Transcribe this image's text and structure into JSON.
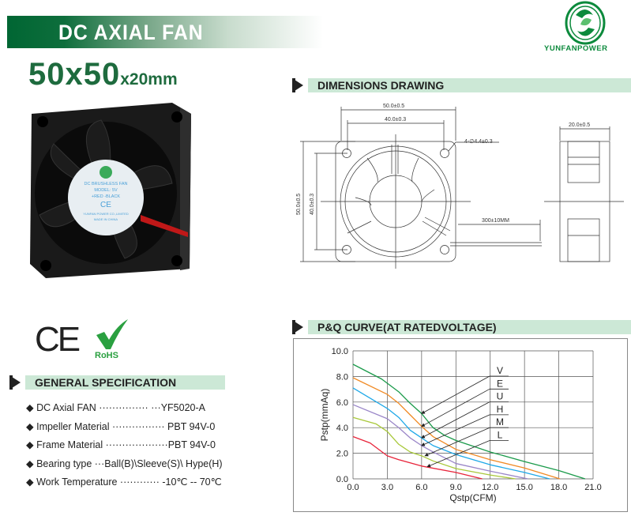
{
  "header": {
    "title": "DC AXIAL FAN",
    "size_main": "50x50",
    "size_sub": "x20mm",
    "brand": "YUNFANPOWER"
  },
  "colors": {
    "brand_green": "#006633",
    "section_bg": "#cce8d6",
    "logo_green": "#0c8a3c"
  },
  "product_label": {
    "line1": "DC BRUSHLESS FAN",
    "line2": "MODEL: 5V",
    "line3": "+RED -BLACK",
    "line4": "YUNFAN POWER CO.,LIMITED",
    "line5": "MADE IN CHINA"
  },
  "certs": {
    "ce": "CE",
    "rohs": "RoHS"
  },
  "dimensions": {
    "title": "DIMENSIONS DRAWING",
    "outer_width": "50.0±0.5",
    "hole_pitch": "40.0±0.3",
    "hole": "4-∅4.4±0.3",
    "outer_height": "50.0±0.5",
    "hole_pitch_v": "40.0±0.3",
    "lead": "300±10MM",
    "depth": "20.0±0.5"
  },
  "spec": {
    "title": "GENERAL SPECIFICATION",
    "items": [
      {
        "label": "DC Axial FAN",
        "dots": " ··············· ···",
        "value": "YF5020-A"
      },
      {
        "label": "Impeller Material",
        "dots": " ················ ",
        "value": "PBT 94V-0"
      },
      {
        "label": "Frame Material",
        "dots": " ···················",
        "value": "PBT 94V-0"
      },
      {
        "label": "Bearing type",
        "dots": " ···",
        "value": "Ball(B)\\Sleeve(S)\\ Hype(H)"
      },
      {
        "label": "Work Temperature",
        "dots": " ············ ",
        "value": "-10℃ -- 70℃"
      }
    ]
  },
  "chart_data": {
    "type": "line",
    "title": "P&Q CURVE(AT RATEDVOLTAGE)",
    "xlabel": "Qstp(CFM)",
    "ylabel": "Pstp(mmAq)",
    "xlim": [
      0,
      21
    ],
    "ylim": [
      0,
      10
    ],
    "xticks": [
      "0.0",
      "3.0",
      "6.0",
      "9.0",
      "12.0",
      "15.0",
      "18.0",
      "21.0"
    ],
    "yticks": [
      "0.0",
      "2.0",
      "4.0",
      "6.0",
      "8.0",
      "10.0"
    ],
    "grid": true,
    "legend": "right, arrow callouts",
    "series": [
      {
        "name": "V",
        "color": "#1a9a4a",
        "x": [
          0,
          2.5,
          4,
          5,
          6,
          7,
          8,
          9,
          12,
          15,
          18,
          20.3
        ],
        "y": [
          8.95,
          7.8,
          6.8,
          5.9,
          5.1,
          4.0,
          3.4,
          3.0,
          2.1,
          1.35,
          0.65,
          0
        ],
        "arrow_at": [
          6.0,
          5.1
        ]
      },
      {
        "name": "E",
        "color": "#f08a24",
        "x": [
          0,
          3,
          4,
          5,
          6,
          7,
          9,
          12,
          15,
          18.1
        ],
        "y": [
          7.9,
          6.6,
          5.9,
          5.0,
          4.1,
          3.3,
          2.3,
          1.5,
          0.85,
          0
        ],
        "arrow_at": [
          6.0,
          4.1
        ]
      },
      {
        "name": "U",
        "color": "#1ea8e8",
        "x": [
          0,
          3,
          4,
          5,
          6,
          7,
          9,
          12,
          15,
          17.2
        ],
        "y": [
          7.1,
          5.5,
          4.8,
          3.8,
          3.2,
          2.6,
          1.9,
          1.1,
          0.5,
          0
        ],
        "arrow_at": [
          6.0,
          3.2
        ]
      },
      {
        "name": "H",
        "color": "#9a86c8",
        "x": [
          0,
          3,
          4,
          5,
          6,
          7,
          9,
          12,
          15.3
        ],
        "y": [
          5.8,
          4.7,
          4.0,
          3.2,
          2.6,
          2.1,
          1.2,
          0.6,
          0
        ],
        "arrow_at": [
          6.0,
          2.6
        ]
      },
      {
        "name": "M",
        "color": "#a8c83a",
        "x": [
          0,
          2,
          3,
          4,
          5,
          6,
          7,
          9,
          12,
          14.2
        ],
        "y": [
          4.8,
          4.3,
          3.7,
          2.7,
          2.1,
          1.8,
          1.4,
          0.8,
          0.3,
          0
        ],
        "arrow_at": [
          6.3,
          1.8
        ]
      },
      {
        "name": "L",
        "color": "#e8243a",
        "x": [
          0,
          1.5,
          3,
          4,
          6,
          9,
          11.3
        ],
        "y": [
          3.3,
          2.8,
          1.8,
          1.5,
          1.0,
          0.5,
          0
        ],
        "arrow_at": [
          6.5,
          0.95
        ]
      }
    ]
  }
}
